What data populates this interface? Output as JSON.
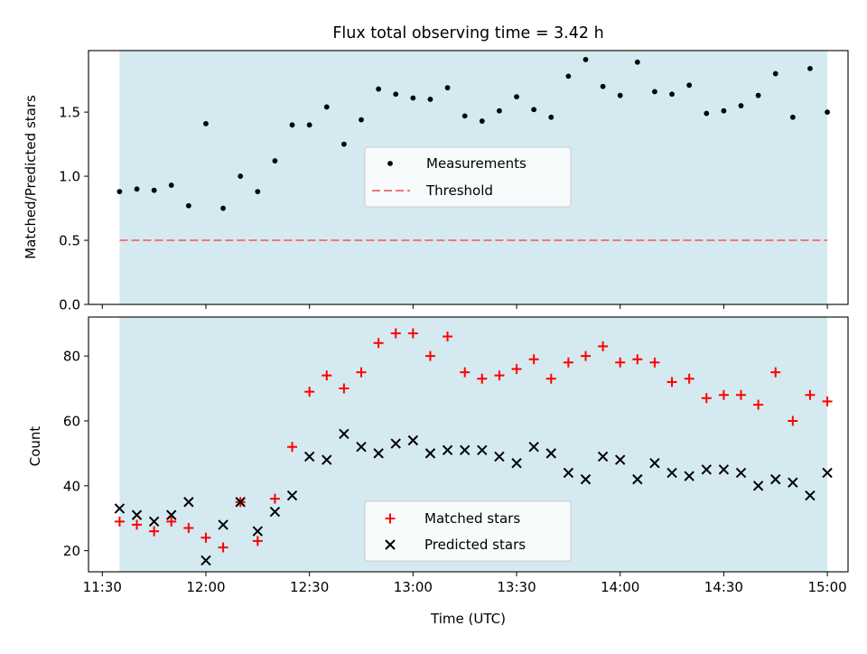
{
  "title": "Flux total observing time = 3.42 h",
  "colors": {
    "shade": "#d4eaf0",
    "measurement": "#000000",
    "threshold": "#f07878",
    "matched": "#ff0000",
    "predicted": "#000000"
  },
  "chart_data": [
    {
      "type": "scatter",
      "panel": "top",
      "ylabel": "Matched/Predicted stars",
      "xlabel": "",
      "xlim": [
        "11:26",
        "15:06"
      ],
      "ylim": [
        0,
        1.98
      ],
      "yticks": [
        "0.0",
        "0.5",
        "1.0",
        "1.5"
      ],
      "xticks": [
        "11:30",
        "12:00",
        "12:30",
        "13:00",
        "13:30",
        "14:00",
        "14:30",
        "15:00"
      ],
      "shaded_span": [
        "11:35",
        "15:00"
      ],
      "grid": false,
      "legend_position": "center",
      "legend": [
        "Measurements",
        "Threshold"
      ],
      "threshold": 0.5,
      "series": [
        {
          "name": "Measurements",
          "marker": "dot",
          "x": [
            "11:35",
            "11:40",
            "11:45",
            "11:50",
            "11:55",
            "12:00",
            "12:05",
            "12:10",
            "12:15",
            "12:20",
            "12:25",
            "12:30",
            "12:35",
            "12:40",
            "12:45",
            "12:50",
            "12:55",
            "13:00",
            "13:05",
            "13:10",
            "13:15",
            "13:20",
            "13:25",
            "13:30",
            "13:35",
            "13:40",
            "13:45",
            "13:50",
            "13:55",
            "14:00",
            "14:05",
            "14:10",
            "14:15",
            "14:20",
            "14:25",
            "14:30",
            "14:35",
            "14:40",
            "14:45",
            "14:50",
            "14:55",
            "15:00"
          ],
          "y": [
            0.88,
            0.9,
            0.89,
            0.93,
            0.77,
            1.41,
            0.75,
            1.0,
            0.88,
            1.12,
            1.4,
            1.4,
            1.54,
            1.25,
            1.44,
            1.68,
            1.64,
            1.61,
            1.6,
            1.69,
            1.47,
            1.43,
            1.51,
            1.62,
            1.52,
            1.46,
            1.78,
            1.91,
            1.7,
            1.63,
            1.89,
            1.66,
            1.64,
            1.71,
            1.49,
            1.51,
            1.55,
            1.63,
            1.8,
            1.46,
            1.84,
            1.5
          ]
        }
      ]
    },
    {
      "type": "scatter",
      "panel": "bottom",
      "ylabel": "Count",
      "xlabel": "Time (UTC)",
      "xlim": [
        "11:26",
        "15:06"
      ],
      "ylim": [
        13.5,
        92
      ],
      "yticks": [
        "20",
        "40",
        "60",
        "80"
      ],
      "xticks": [
        "11:30",
        "12:00",
        "12:30",
        "13:00",
        "13:30",
        "14:00",
        "14:30",
        "15:00"
      ],
      "shaded_span": [
        "11:35",
        "15:00"
      ],
      "grid": false,
      "legend_position": "lower center",
      "legend": [
        "Matched stars",
        "Predicted stars"
      ],
      "series": [
        {
          "name": "Matched stars",
          "marker": "plus",
          "x": [
            "11:35",
            "11:40",
            "11:45",
            "11:50",
            "11:55",
            "12:00",
            "12:05",
            "12:10",
            "12:15",
            "12:20",
            "12:25",
            "12:30",
            "12:35",
            "12:40",
            "12:45",
            "12:50",
            "12:55",
            "13:00",
            "13:05",
            "13:10",
            "13:15",
            "13:20",
            "13:25",
            "13:30",
            "13:35",
            "13:40",
            "13:45",
            "13:50",
            "13:55",
            "14:00",
            "14:05",
            "14:10",
            "14:15",
            "14:20",
            "14:25",
            "14:30",
            "14:35",
            "14:40",
            "14:45",
            "14:50",
            "14:55",
            "15:00"
          ],
          "y": [
            29,
            28,
            26,
            29,
            27,
            24,
            21,
            35,
            23,
            36,
            52,
            69,
            74,
            70,
            75,
            84,
            87,
            87,
            80,
            86,
            75,
            73,
            74,
            76,
            79,
            73,
            78,
            80,
            83,
            78,
            79,
            78,
            72,
            73,
            67,
            68,
            68,
            65,
            75,
            60,
            68,
            66
          ]
        },
        {
          "name": "Predicted stars",
          "marker": "x",
          "x": [
            "11:35",
            "11:40",
            "11:45",
            "11:50",
            "11:55",
            "12:00",
            "12:05",
            "12:10",
            "12:15",
            "12:20",
            "12:25",
            "12:30",
            "12:35",
            "12:40",
            "12:45",
            "12:50",
            "12:55",
            "13:00",
            "13:05",
            "13:10",
            "13:15",
            "13:20",
            "13:25",
            "13:30",
            "13:35",
            "13:40",
            "13:45",
            "13:50",
            "13:55",
            "14:00",
            "14:05",
            "14:10",
            "14:15",
            "14:20",
            "14:25",
            "14:30",
            "14:35",
            "14:40",
            "14:45",
            "14:50",
            "14:55",
            "15:00"
          ],
          "y": [
            33,
            31,
            29,
            31,
            35,
            17,
            28,
            35,
            26,
            32,
            37,
            49,
            48,
            56,
            52,
            50,
            53,
            54,
            50,
            51,
            51,
            51,
            49,
            47,
            52,
            50,
            44,
            42,
            49,
            48,
            42,
            47,
            44,
            43,
            45,
            45,
            44,
            40,
            42,
            41,
            37,
            44
          ]
        }
      ]
    }
  ]
}
